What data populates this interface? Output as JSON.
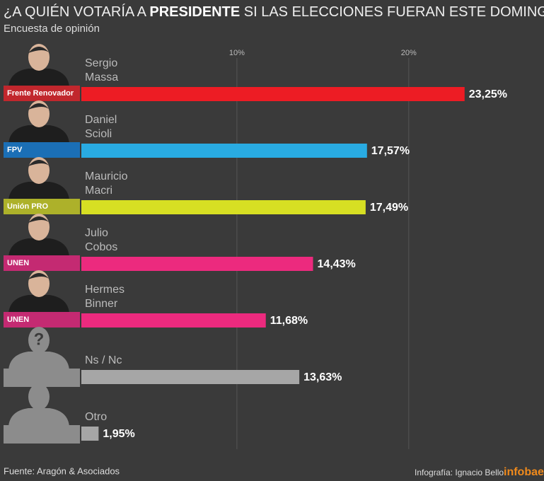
{
  "chart_data": {
    "type": "bar",
    "title_parts": [
      "¿A QUIÉN VOTARÍA A",
      "PRESIDENTE",
      "SI LAS ELECCIONES FUERAN ESTE DOMINGO?"
    ],
    "subtitle": "Encuesta de opinión",
    "candidates": [
      {
        "name_lines": [
          "Sergio",
          "Massa"
        ],
        "party": "Frente Renovador",
        "party_color": "#c1272d",
        "color": "#ed1c24"
      },
      {
        "name_lines": [
          "Daniel",
          "Scioli"
        ],
        "party": "FPV",
        "party_color": "#1b6fb6",
        "color": "#29abe2"
      },
      {
        "name_lines": [
          "Mauricio",
          "Macri"
        ],
        "party": "Unión PRO",
        "party_color": "#adb12a",
        "color": "#d7df23"
      },
      {
        "name_lines": [
          "Julio",
          "Cobos"
        ],
        "party": "UNEN",
        "party_color": "#c42a72",
        "color": "#ec2a7e"
      },
      {
        "name_lines": [
          "Hermes",
          "Binner"
        ],
        "party": "UNEN",
        "party_color": "#c42a72",
        "color": "#ec2a7e"
      },
      {
        "name_lines": [
          "Ns / Nc"
        ],
        "icon_text": "?",
        "party_color": "#8c8c8c",
        "color": "#a6a6a6"
      },
      {
        "name_lines": [
          "Otro"
        ],
        "party_color": "#8c8c8c",
        "color": "#a6a6a6"
      }
    ],
    "values": [
      23.25,
      17.57,
      17.49,
      14.43,
      11.68,
      13.63,
      1.95
    ],
    "value_labels": [
      "23,25%",
      "17,57%",
      "17,49%",
      "14,43%",
      "11,68%",
      "13,63%",
      "1,95%"
    ],
    "xlim": [
      0,
      27.5
    ],
    "xticks": [
      {
        "value": 10,
        "label": "10%"
      },
      {
        "value": 20,
        "label": "20%"
      }
    ],
    "grid": true,
    "source": "Fuente: Aragón & Asociados",
    "credit": "Infografía:  Ignacio Bello",
    "brand": "infobae"
  }
}
